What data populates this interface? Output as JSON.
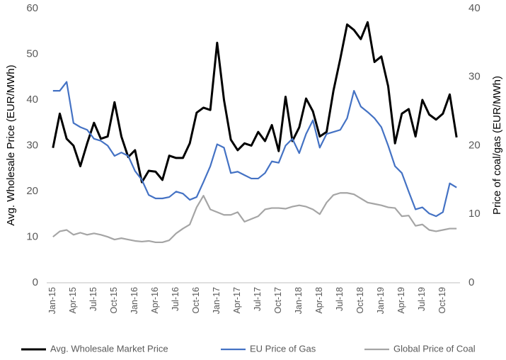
{
  "chart_data": {
    "type": "line",
    "ylabel": "Avg. Wholesale Price (EUR/MWh)",
    "y2label": "Price of coal/gas (EUR/MWh)",
    "categories": [
      "Jan-15",
      null,
      null,
      "Apr-15",
      null,
      null,
      "Jul-15",
      null,
      null,
      "Oct-15",
      null,
      null,
      "Jan-16",
      null,
      null,
      "Apr-16",
      null,
      null,
      "Jul-16",
      null,
      null,
      "Oct-16",
      null,
      null,
      "Jan-17",
      null,
      null,
      "Apr-17",
      null,
      null,
      "Jul-17",
      null,
      null,
      "Oct-17",
      null,
      null,
      "Jan-18",
      null,
      null,
      "Apr-18",
      null,
      null,
      "Jul-18",
      null,
      null,
      "Oct-18",
      null,
      null,
      "Jan-19",
      null,
      null,
      "Apr-19",
      null,
      null,
      "Jul-19",
      null,
      null,
      "Oct-19",
      null,
      null
    ],
    "series": [
      {
        "name": "Avg. Wholesale Market Price",
        "color": "#000000",
        "axis": "y",
        "values": [
          29.5,
          37,
          31.5,
          30,
          25.5,
          30.5,
          35,
          31.5,
          32,
          39.5,
          32,
          27.5,
          29,
          22,
          24.5,
          24.3,
          22.5,
          27.8,
          27.3,
          27.3,
          30.5,
          37.2,
          38.3,
          37.8,
          52.5,
          40,
          31.3,
          29,
          30.5,
          30,
          33,
          31,
          34.5,
          28.8,
          40.7,
          31,
          34,
          40.3,
          37.5,
          32,
          33,
          42,
          49,
          56.5,
          55.3,
          53.3,
          57,
          48.3,
          49.5,
          43,
          30.5,
          37,
          38,
          32,
          40,
          36.8,
          35.7,
          37,
          41.2,
          31.8
        ]
      },
      {
        "name": "EU Price of Gas",
        "color": "#4472c4",
        "axis": "y2",
        "values": [
          28,
          28,
          29.3,
          23.3,
          22.7,
          22.3,
          21,
          20.7,
          20,
          18.5,
          19,
          18.5,
          16.3,
          15,
          12.8,
          12.3,
          12.3,
          12.5,
          13.3,
          13,
          12.1,
          12.5,
          14.7,
          17,
          20.2,
          19.7,
          16,
          16.2,
          15.7,
          15.2,
          15.2,
          16,
          17.7,
          17.5,
          20,
          21,
          18.9,
          21.7,
          23.7,
          19.7,
          21.7,
          22,
          22.3,
          24,
          28,
          25.7,
          24.9,
          24,
          22.7,
          20,
          17,
          16,
          13.3,
          10.7,
          11,
          10.1,
          9.7,
          10.3,
          14.5,
          13.9
        ]
      },
      {
        "name": "Global Price of Coal",
        "color": "#a5a5a5",
        "axis": "y2",
        "values": [
          6.7,
          7.5,
          7.7,
          7,
          7.3,
          7,
          7.2,
          7,
          6.7,
          6.3,
          6.5,
          6.3,
          6.1,
          6,
          6.1,
          5.9,
          5.9,
          6.2,
          7.2,
          7.9,
          8.5,
          11,
          12.7,
          10.7,
          10.3,
          9.9,
          9.9,
          10.3,
          8.9,
          9.3,
          9.7,
          10.7,
          10.9,
          10.9,
          10.8,
          11.1,
          11.3,
          11.1,
          10.7,
          10,
          11.7,
          12.8,
          13.1,
          13.1,
          12.9,
          12.3,
          11.7,
          11.5,
          11.3,
          11,
          10.9,
          9.7,
          9.8,
          8.3,
          8.5,
          7.7,
          7.5,
          7.7,
          7.9,
          7.9
        ]
      }
    ],
    "ylim": [
      0,
      60
    ],
    "yticks": [
      0,
      10,
      20,
      30,
      40,
      50,
      60
    ],
    "y2lim": [
      0,
      40
    ],
    "y2ticks": [
      0,
      10,
      20,
      30,
      40
    ],
    "grid": false,
    "legend": "bottom"
  }
}
